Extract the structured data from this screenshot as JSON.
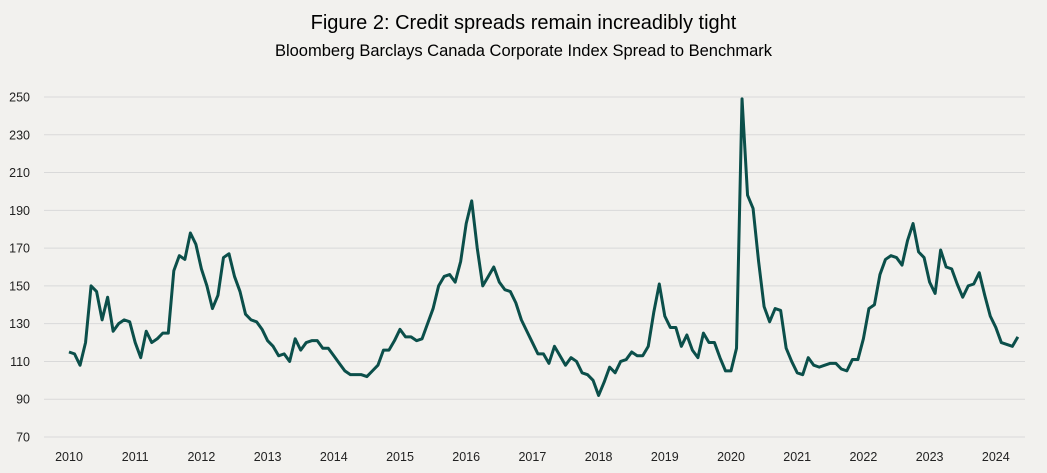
{
  "chart_data": {
    "type": "line",
    "title": "Figure 2: Credit spreads remain increadibly tight",
    "subtitle": "Bloomberg Barclays Canada Corporate Index Spread to Benchmark",
    "xlabel": "",
    "ylabel": "",
    "ylim": [
      70,
      250
    ],
    "yticks": [
      70,
      90,
      110,
      130,
      150,
      170,
      190,
      210,
      230,
      250
    ],
    "xticks": [
      "2010",
      "2011",
      "2012",
      "2013",
      "2014",
      "2015",
      "2016",
      "2017",
      "2018",
      "2019",
      "2020",
      "2021",
      "2022",
      "2023",
      "2024"
    ],
    "grid": true,
    "frequency": "monthly",
    "start": "2010-01",
    "end": "2024-05",
    "line_color": "#0b4f4a",
    "values": [
      115,
      114,
      108,
      120,
      150,
      147,
      132,
      144,
      126,
      130,
      132,
      131,
      120,
      112,
      126,
      120,
      122,
      125,
      125,
      158,
      166,
      164,
      178,
      172,
      159,
      150,
      138,
      145,
      165,
      167,
      155,
      147,
      135,
      132,
      131,
      127,
      121,
      118,
      113,
      114,
      110,
      122,
      116,
      120,
      121,
      121,
      117,
      117,
      113,
      109,
      105,
      103,
      103,
      103,
      102,
      105,
      108,
      116,
      116,
      121,
      127,
      123,
      123,
      121,
      122,
      130,
      138,
      150,
      155,
      156,
      152,
      163,
      183,
      195,
      170,
      150,
      155,
      160,
      152,
      148,
      147,
      141,
      132,
      126,
      120,
      114,
      114,
      109,
      118,
      113,
      108,
      112,
      110,
      104,
      103,
      100,
      92,
      99,
      107,
      104,
      110,
      111,
      115,
      113,
      113,
      118,
      136,
      151,
      134,
      128,
      128,
      118,
      124,
      116,
      112,
      125,
      120,
      120,
      112,
      105,
      105,
      117,
      249,
      198,
      191,
      163,
      139,
      131,
      138,
      137,
      117,
      110,
      104,
      103,
      112,
      108,
      107,
      108,
      109,
      109,
      106,
      105,
      111,
      111,
      122,
      138,
      140,
      156,
      164,
      166,
      165,
      161,
      174,
      183,
      168,
      165,
      152,
      146,
      169,
      160,
      159,
      151,
      144,
      150,
      151,
      157,
      145,
      134,
      128,
      120,
      119,
      118,
      123
    ]
  }
}
